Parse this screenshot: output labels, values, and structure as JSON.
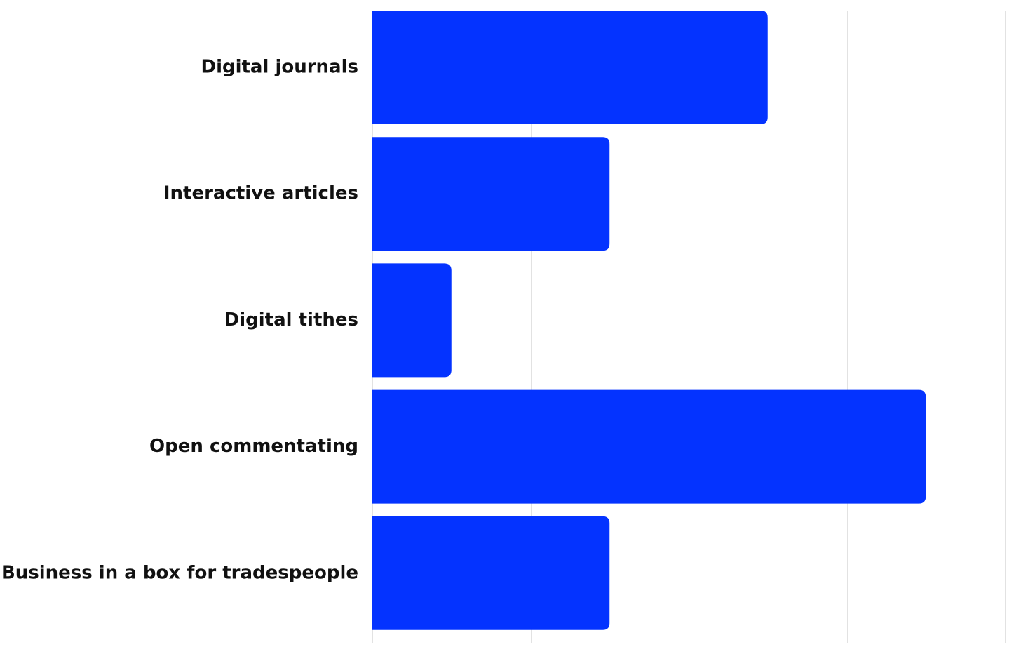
{
  "chart_data": {
    "type": "bar",
    "orientation": "horizontal",
    "categories": [
      "Digital journals",
      "Interactive articles",
      "Digital tithes",
      "Open commentating",
      "Business in a box for tradespeople"
    ],
    "values": [
      5,
      3,
      1,
      7,
      3
    ],
    "xlim": [
      0,
      8
    ],
    "grid": true,
    "legend": "none",
    "title": "",
    "xlabel": "",
    "ylabel": "",
    "bar_color": "#0433ff",
    "label_color": "#111111",
    "grid_color": "#e2e2e2"
  }
}
